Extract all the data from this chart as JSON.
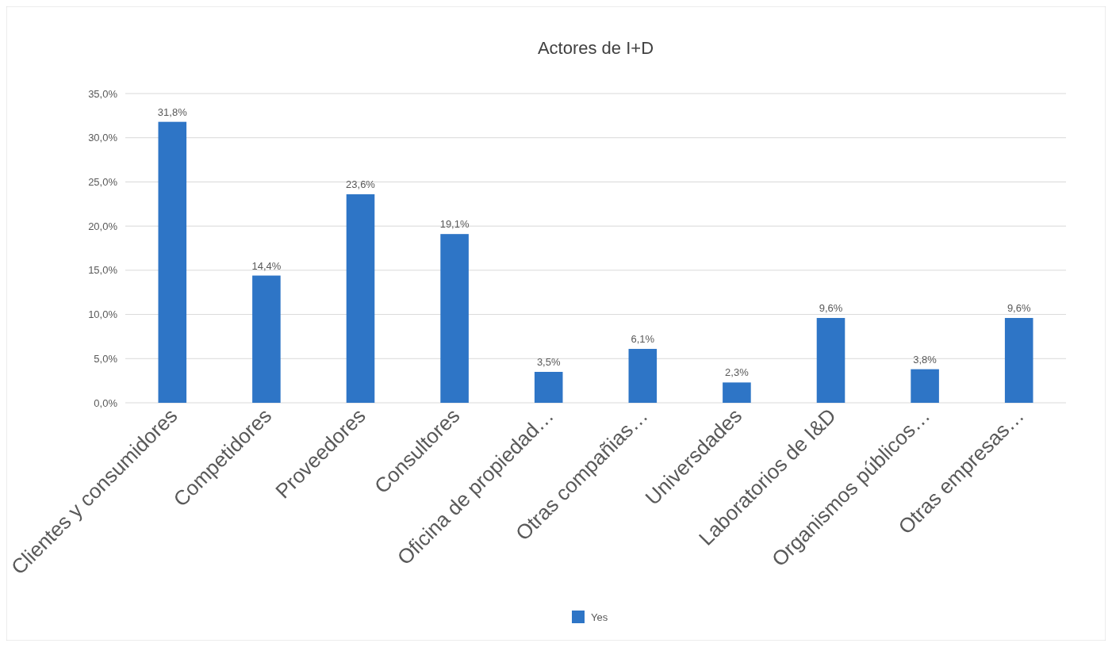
{
  "chart_data": {
    "type": "bar",
    "title": "Actores de I+D",
    "categories": [
      "Clientes y consumidores",
      "Competidores",
      "Proveedores",
      "Consultores",
      "Oficina de propiedad…",
      "Otras compañias…",
      "Universdades",
      "Laboratorios de I&D",
      "Organismos públicos…",
      "Otras empresas…"
    ],
    "series": [
      {
        "name": "Yes",
        "color": "#2e75c6",
        "values": [
          31.8,
          14.4,
          23.6,
          19.1,
          3.5,
          6.1,
          2.3,
          9.6,
          3.8,
          9.6
        ],
        "value_labels": [
          "31,8%",
          "14,4%",
          "23,6%",
          "19,1%",
          "3,5%",
          "6,1%",
          "2,3%",
          "9,6%",
          "3,8%",
          "9,6%"
        ]
      }
    ],
    "ylim": [
      0,
      35
    ],
    "yticks": [
      {
        "value": 0,
        "label": "0,0%"
      },
      {
        "value": 5,
        "label": "5,0%"
      },
      {
        "value": 10,
        "label": "10,0%"
      },
      {
        "value": 15,
        "label": "15,0%"
      },
      {
        "value": 20,
        "label": "20,0%"
      },
      {
        "value": 25,
        "label": "25,0%"
      },
      {
        "value": 30,
        "label": "30,0%"
      },
      {
        "value": 35,
        "label": "35,0%"
      }
    ],
    "grid": "y",
    "legend": "bottom"
  }
}
